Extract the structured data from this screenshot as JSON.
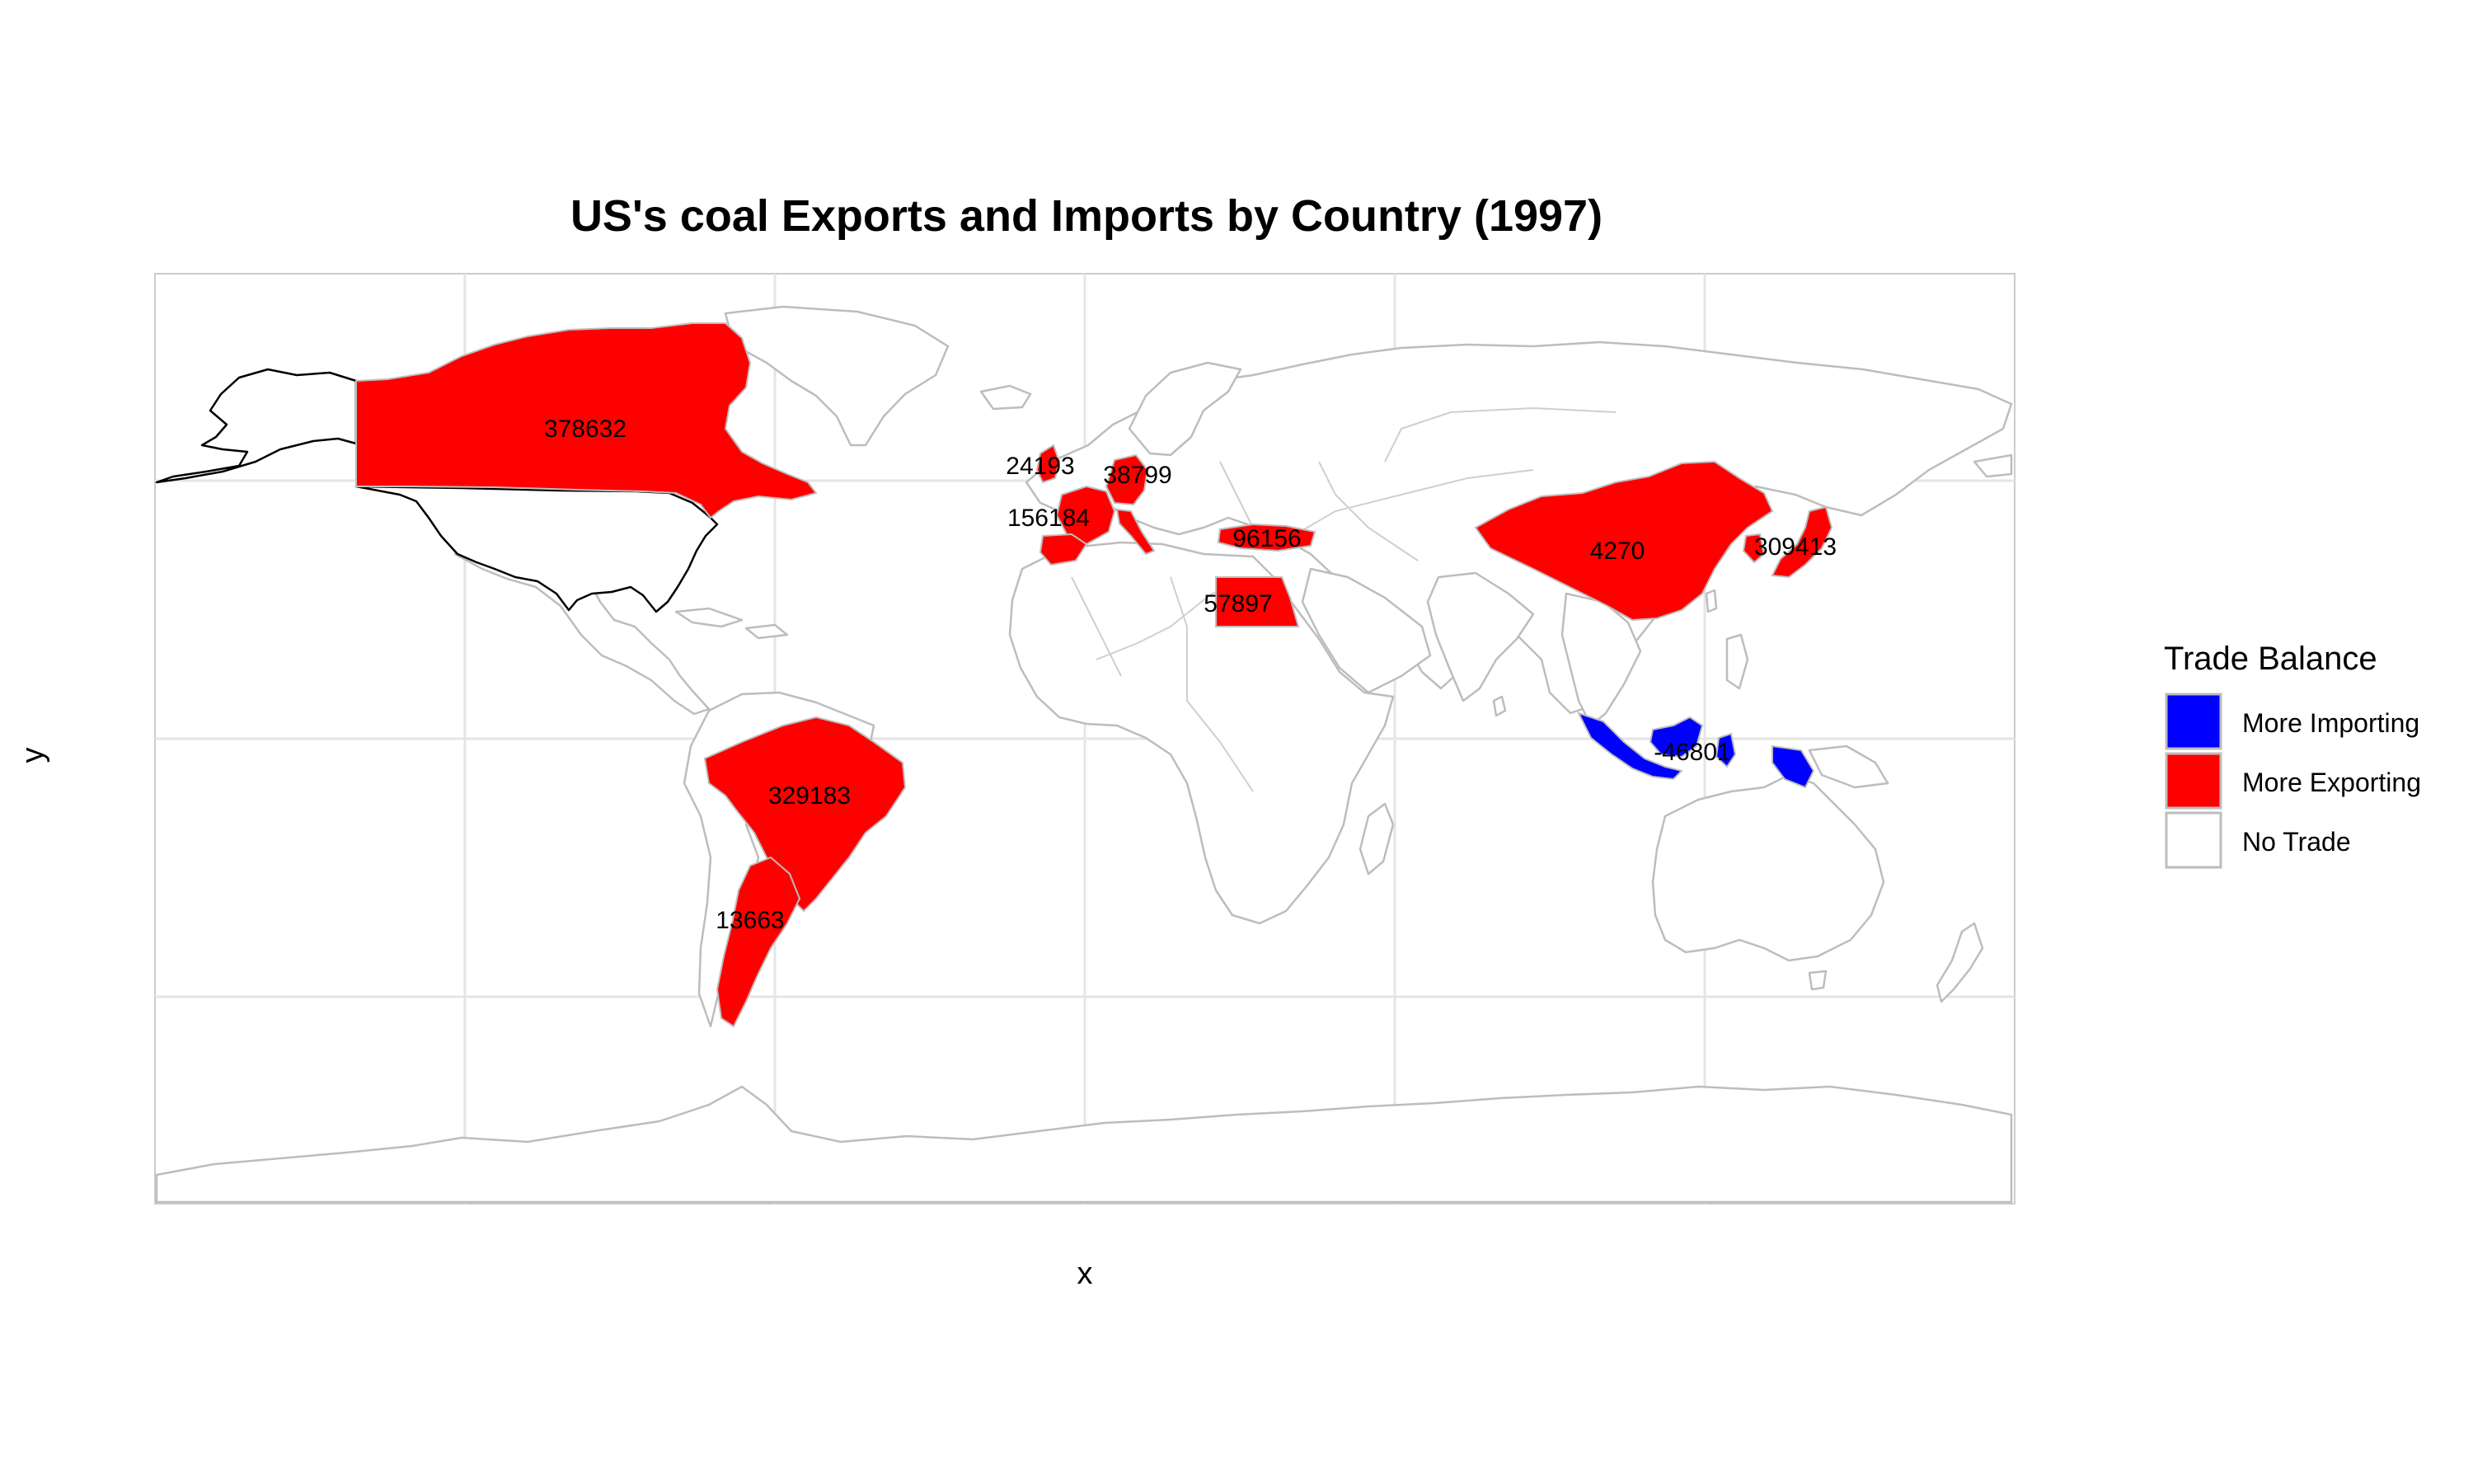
{
  "title": "US's coal Exports and Imports by Country (1997)",
  "x_label": "x",
  "y_label": "y",
  "legend": {
    "title": "Trade Balance",
    "items": [
      {
        "label": "More Importing",
        "color": "#0000ff"
      },
      {
        "label": "More Exporting",
        "color": "#ff0000"
      },
      {
        "label": "No Trade",
        "color": "#ffffff"
      }
    ]
  },
  "colors": {
    "exporting": "#ff0000",
    "importing": "#0000ff",
    "no_trade": "#ffffff",
    "border": "#bdbdbd"
  },
  "regions": [
    {
      "country": "Canada",
      "balance": "More Exporting",
      "label": "378632"
    },
    {
      "country": "United Kingdom",
      "balance": "More Exporting",
      "label": "24193"
    },
    {
      "country": "Germany",
      "balance": "More Exporting",
      "label": "38799"
    },
    {
      "country": "France",
      "balance": "More Exporting",
      "label": "156184"
    },
    {
      "country": "Turkey",
      "balance": "More Exporting",
      "label": "96156"
    },
    {
      "country": "Egypt",
      "balance": "More Exporting",
      "label": "57897"
    },
    {
      "country": "China",
      "balance": "More Exporting",
      "label": "4270"
    },
    {
      "country": "Japan",
      "balance": "More Exporting",
      "label": "309413"
    },
    {
      "country": "Indonesia",
      "balance": "More Importing",
      "label": "-46801"
    },
    {
      "country": "Brazil",
      "balance": "More Exporting",
      "label": "329183"
    },
    {
      "country": "Argentina",
      "balance": "More Exporting",
      "label": "13663"
    }
  ]
}
